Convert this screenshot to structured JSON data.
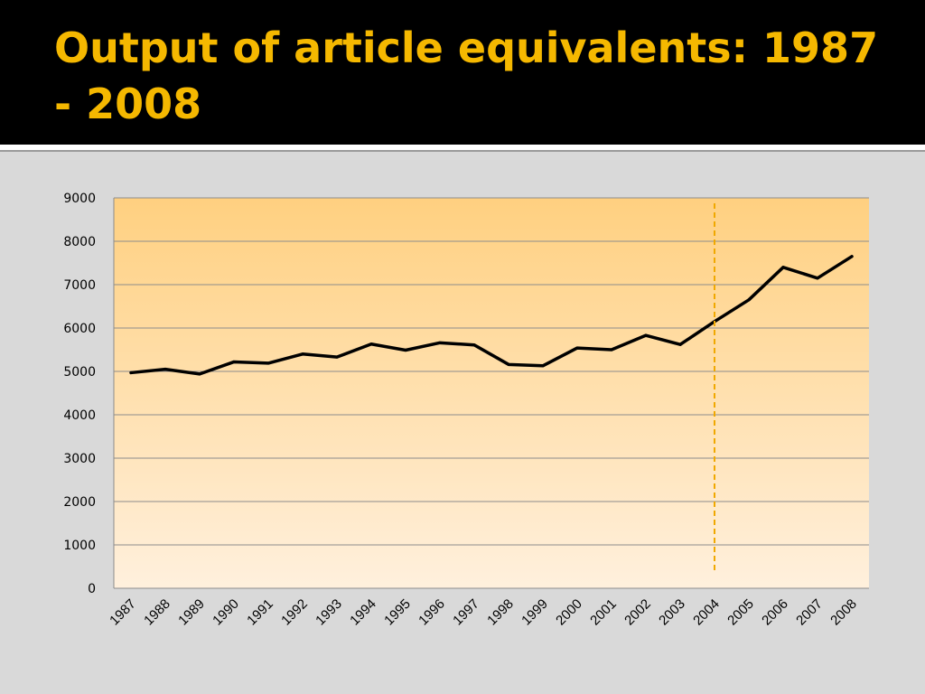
{
  "slide": {
    "title": "Output of article equivalents: 1987 - 2008",
    "title_color": "#f5b800"
  },
  "chart_data": {
    "type": "line",
    "title": "",
    "xlabel": "",
    "ylabel": "",
    "categories": [
      "1987",
      "1988",
      "1989",
      "1990",
      "1991",
      "1992",
      "1993",
      "1994",
      "1995",
      "1996",
      "1997",
      "1998",
      "1999",
      "2000",
      "2001",
      "2002",
      "2003",
      "2004",
      "2005",
      "2006",
      "2007",
      "2008"
    ],
    "series": [
      {
        "values": [
          4970,
          5050,
          4940,
          5220,
          5190,
          5400,
          5330,
          5630,
          5490,
          5660,
          5610,
          5160,
          5130,
          5540,
          5500,
          5830,
          5620,
          6150,
          6650,
          7400,
          7150,
          7650
        ],
        "color": "#000000"
      }
    ],
    "ylim": [
      0,
      9000
    ],
    "yticks": [
      0,
      1000,
      2000,
      3000,
      4000,
      5000,
      6000,
      7000,
      8000,
      9000
    ],
    "grid": true,
    "legend": "none",
    "marker_line": {
      "x": "2004",
      "color": "#f0a800",
      "style": "dashed"
    },
    "plot_gradient": {
      "top": "#ffd080",
      "bottom": "#fff0dd"
    }
  }
}
